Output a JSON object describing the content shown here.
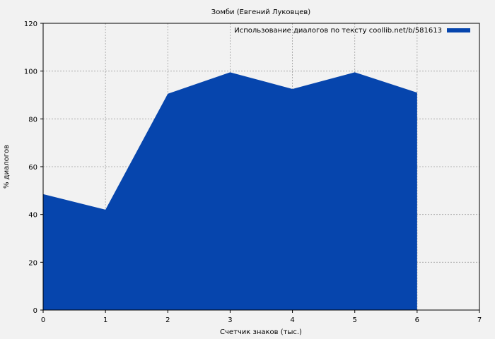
{
  "chart_data": {
    "type": "area",
    "title": "Зомби (Евгений Луковцев)",
    "xlabel": "Счетчик знаков (тыс.)",
    "ylabel": "% диалогов",
    "xlim": [
      0,
      7
    ],
    "ylim": [
      0,
      120
    ],
    "xticks": [
      0,
      1,
      2,
      3,
      4,
      5,
      6,
      7
    ],
    "yticks": [
      0,
      20,
      40,
      60,
      80,
      100,
      120
    ],
    "grid": true,
    "legend_position": "top-right",
    "series": [
      {
        "name": "Использование диалогов по тексту coollib.net/b/581613",
        "color": "#0645ad",
        "x": [
          0,
          1,
          2,
          3,
          4,
          5,
          6
        ],
        "y": [
          48.5,
          42,
          90.5,
          99.5,
          92.5,
          99.5,
          91
        ]
      }
    ]
  }
}
